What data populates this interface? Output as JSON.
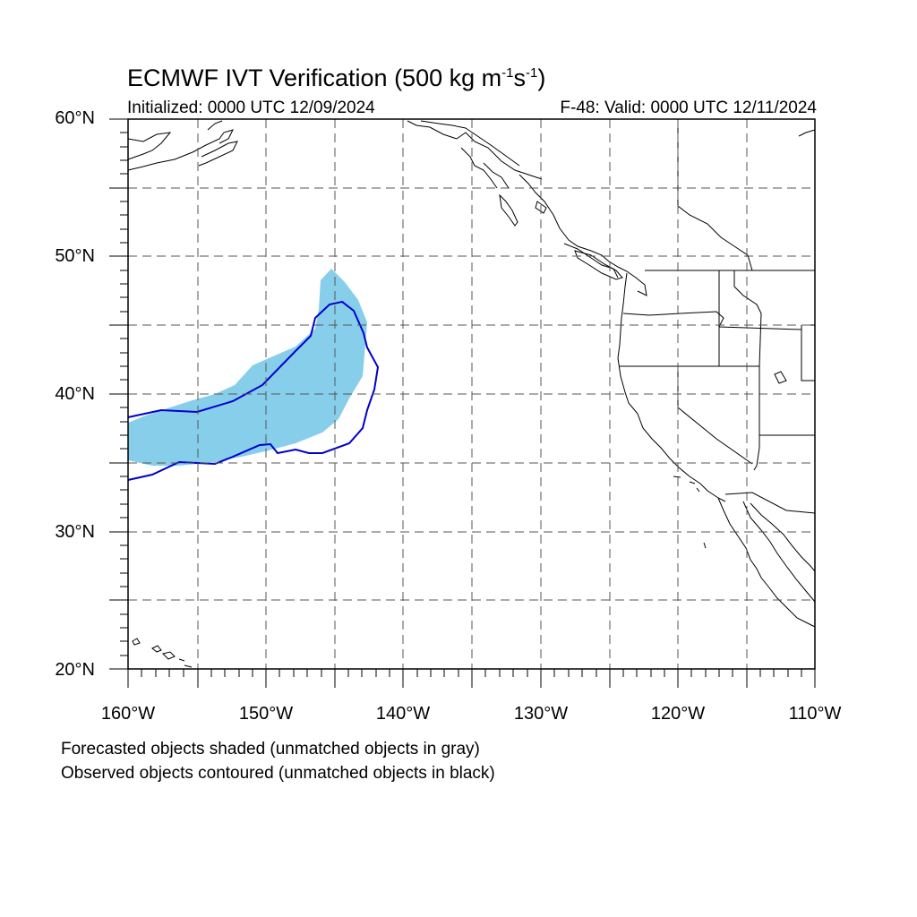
{
  "title": {
    "prefix": "ECMWF IVT Verification (500 kg m",
    "sup1": "-1",
    "mid": "s",
    "sup2": "-1",
    "suffix": ")"
  },
  "initialized": "Initialized: 0000 UTC 12/09/2024",
  "valid": "F-48: Valid: 0000 UTC 12/11/2024",
  "notes": [
    "Forecasted objects shaded (unmatched objects in gray)",
    "Observed objects contoured (unmatched objects in black)"
  ],
  "lat_labels": [
    "60°N",
    "50°N",
    "40°N",
    "30°N",
    "20°N"
  ],
  "lon_labels": [
    "160°W",
    "150°W",
    "140°W",
    "130°W",
    "120°W",
    "110°W"
  ],
  "colors": {
    "forecast_fill": "#87ceeb",
    "observed_contour": "#0000cc",
    "coastline": "#000000",
    "gridline": "#555555"
  }
}
